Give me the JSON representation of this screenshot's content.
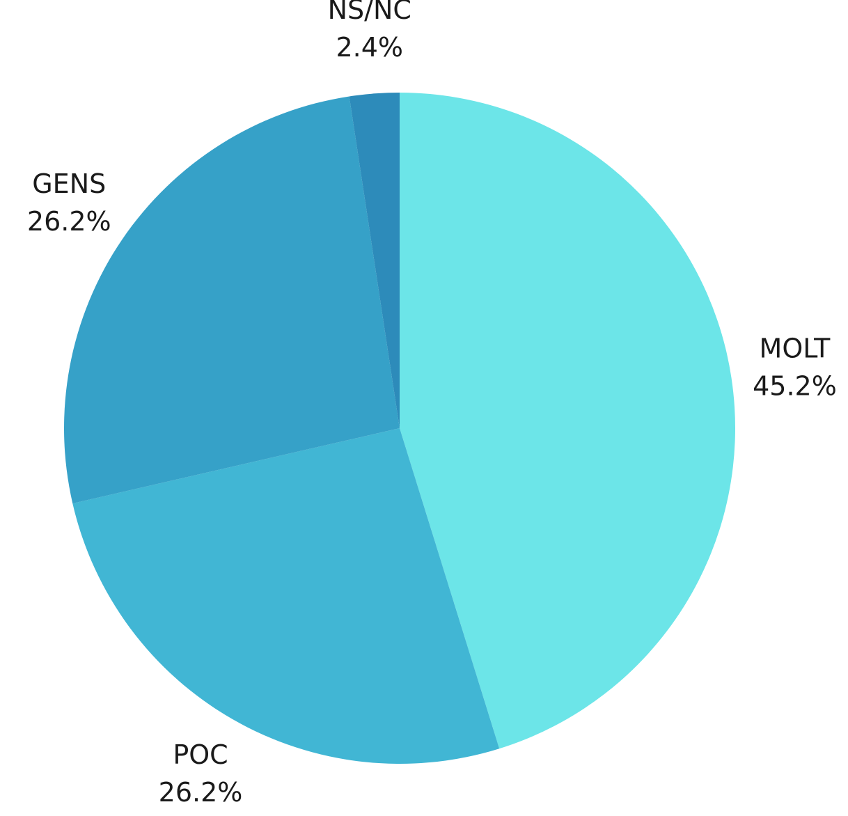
{
  "chart_data": {
    "type": "pie",
    "categories": [
      "MOLT",
      "POC",
      "GENS",
      "NS/NC"
    ],
    "values": [
      45.2,
      26.2,
      26.2,
      2.4
    ],
    "value_labels": [
      "45.2%",
      "26.2%",
      "26.2%",
      "2.4%"
    ],
    "colors": [
      "#6ce5e8",
      "#41b6d4",
      "#36a1c8",
      "#2d8bba"
    ]
  }
}
